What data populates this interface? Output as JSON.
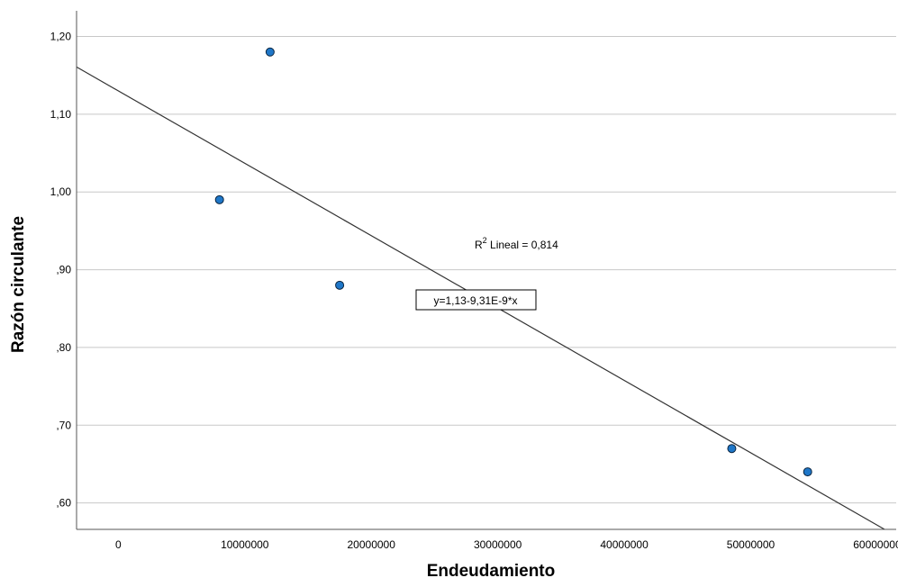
{
  "chart_data": {
    "type": "scatter",
    "xlabel": "Endeudamiento",
    "ylabel": "Razón circulante",
    "x_ticks": [
      "0",
      "10000000",
      "20000000",
      "30000000",
      "40000000",
      "50000000",
      "60000000"
    ],
    "y_ticks": [
      ",60",
      ",70",
      ",80",
      ",90",
      "1,00",
      "1,10",
      "1,20"
    ],
    "xlim": [
      -3300000,
      61500000
    ],
    "ylim": [
      0.566,
      1.233
    ],
    "grid": "horizontal",
    "points": [
      {
        "x": 8000000,
        "y": 0.99
      },
      {
        "x": 12000000,
        "y": 1.18
      },
      {
        "x": 17500000,
        "y": 0.88
      },
      {
        "x": 48500000,
        "y": 0.67
      },
      {
        "x": 54500000,
        "y": 0.64
      }
    ],
    "fit_line": {
      "intercept": 1.13,
      "slope": -9.31e-09
    },
    "annotations": {
      "r2_prefix": "R",
      "r2_sup": "2",
      "r2_rest": " Lineal = 0,814",
      "equation": "y=1,13-9,31E-9*x"
    },
    "colors": {
      "point_fill": "#1f77c8",
      "point_stroke": "#0b2540",
      "grid": "#c8c8c8",
      "line": "#333333"
    }
  }
}
